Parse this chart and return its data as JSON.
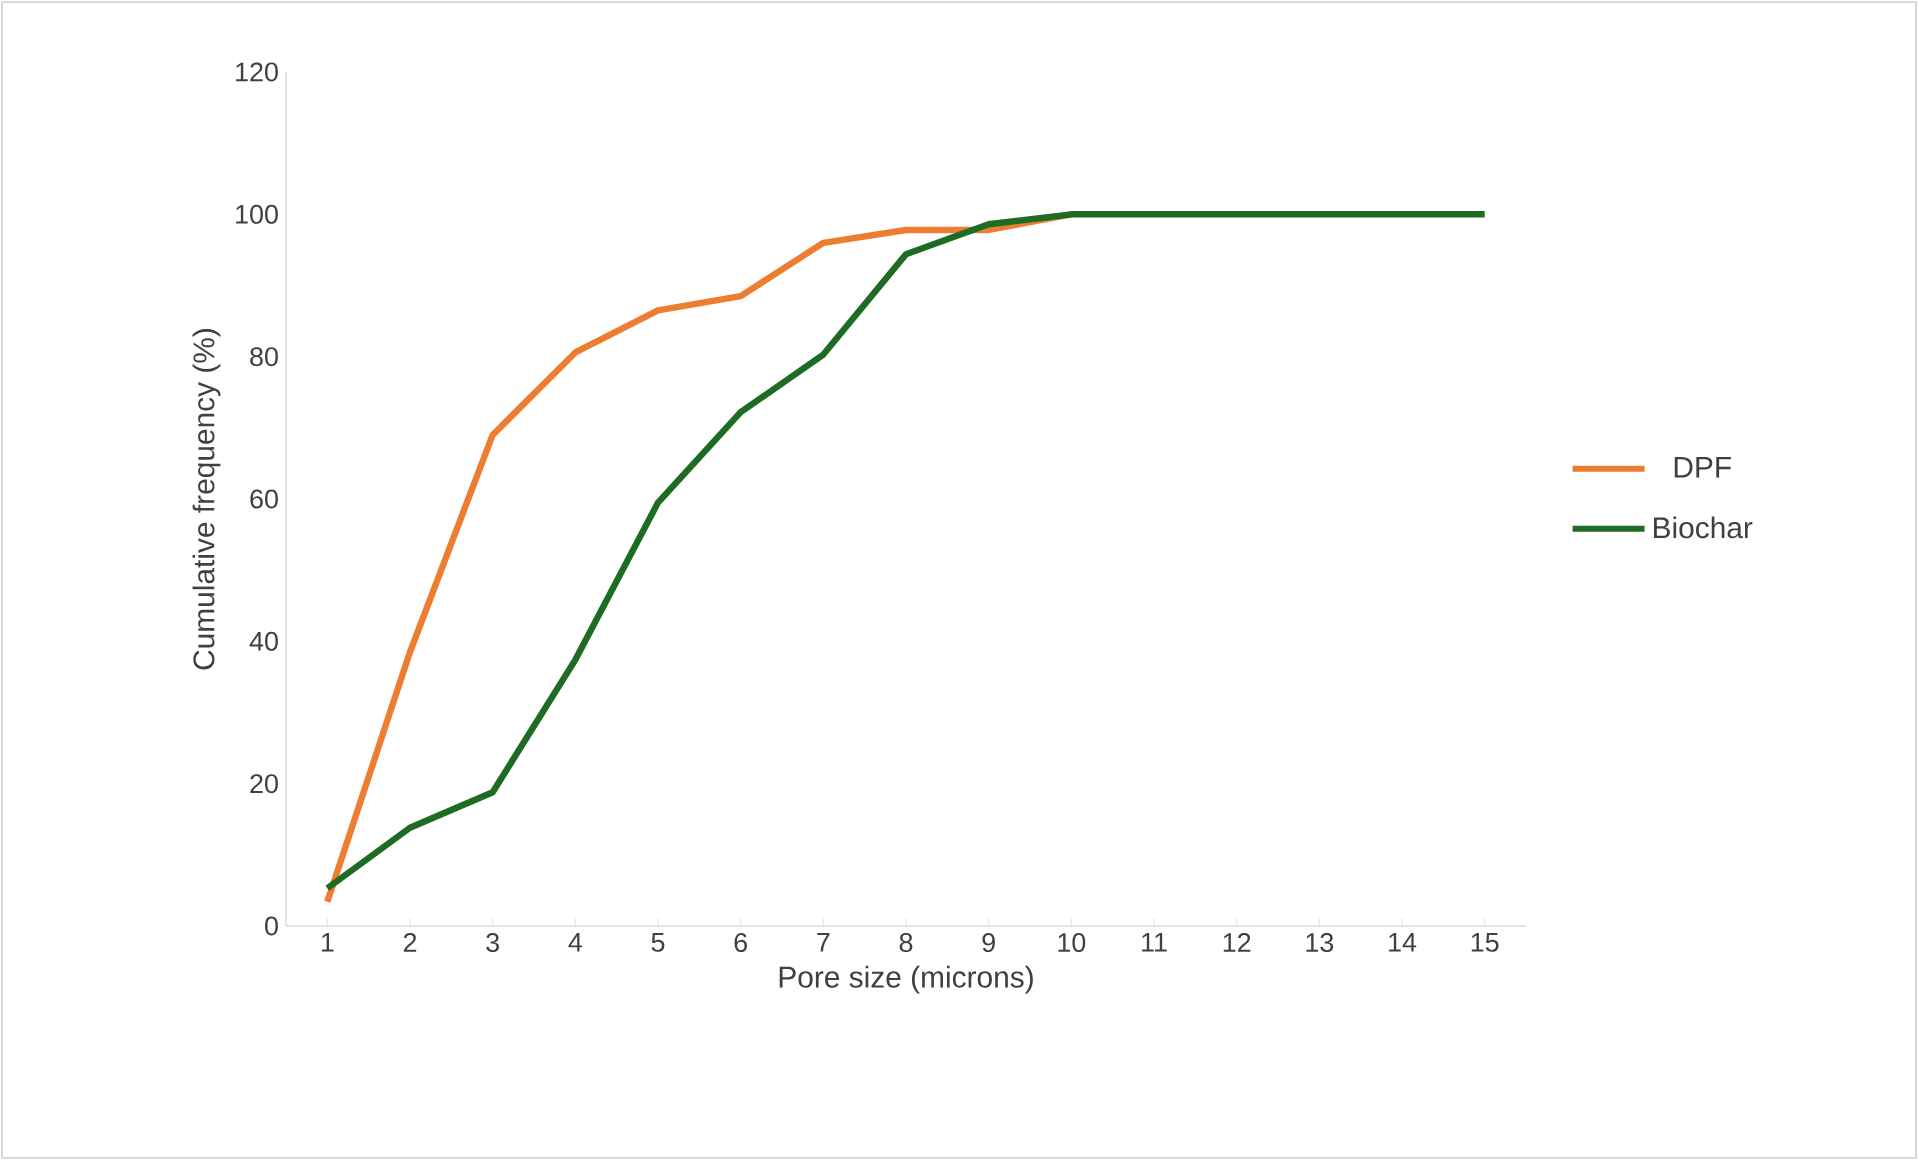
{
  "chart_data": {
    "type": "line",
    "xlabel": "Pore size (microns)",
    "ylabel": "Cumulative frequency (%)",
    "categories": [
      "1",
      "2",
      "3",
      "4",
      "5",
      "6",
      "7",
      "8",
      "9",
      "10",
      "11",
      "12",
      "13",
      "14",
      "15"
    ],
    "ylim": [
      0,
      120
    ],
    "yticks": [
      0,
      20,
      40,
      60,
      80,
      100,
      120
    ],
    "legend": "right",
    "series": [
      {
        "name": "DPF",
        "color": "#ed7d31",
        "values": [
          3.4,
          38.5,
          69,
          80.6,
          86.5,
          88.5,
          96,
          97.8,
          97.8,
          100,
          null,
          null,
          null,
          null,
          null
        ]
      },
      {
        "name": "Biochar",
        "color": "#1e6b24",
        "values": [
          5.3,
          13.8,
          18.8,
          37.4,
          59.5,
          72.2,
          80.3,
          94.4,
          98.6,
          100,
          100,
          100,
          100,
          100,
          100
        ]
      }
    ]
  }
}
